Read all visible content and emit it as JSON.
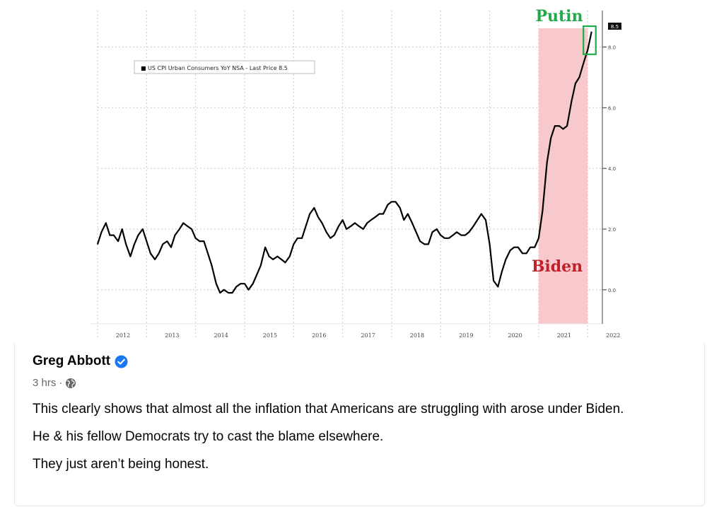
{
  "chart_data": {
    "type": "line",
    "title": "",
    "legend": "US CPI Urban Consumers YoY NSA - Last Price 8.5",
    "legend_symbol": "■",
    "xlabel": "",
    "ylabel": "",
    "x_ticks": [
      "2012",
      "2013",
      "2014",
      "2015",
      "2016",
      "2017",
      "2018",
      "2019",
      "2020",
      "2021",
      "2022"
    ],
    "y_ticks": [
      "0.0",
      "2.0",
      "4.0",
      "6.0",
      "8.0"
    ],
    "ylim": [
      -1.1,
      9.2
    ],
    "xlim": [
      2012.0,
      2022.3
    ],
    "last_price_label": "8.5",
    "series": [
      {
        "name": "US CPI Urban Consumers YoY NSA",
        "color": "#000000",
        "points": [
          [
            2012.0,
            1.5
          ],
          [
            2012.08,
            1.9
          ],
          [
            2012.17,
            2.2
          ],
          [
            2012.25,
            1.8
          ],
          [
            2012.33,
            1.8
          ],
          [
            2012.42,
            1.6
          ],
          [
            2012.5,
            2.0
          ],
          [
            2012.58,
            1.5
          ],
          [
            2012.67,
            1.1
          ],
          [
            2012.75,
            1.5
          ],
          [
            2012.83,
            1.8
          ],
          [
            2012.92,
            2.0
          ],
          [
            2013.0,
            1.6
          ],
          [
            2013.08,
            1.2
          ],
          [
            2013.17,
            1.0
          ],
          [
            2013.25,
            1.2
          ],
          [
            2013.33,
            1.5
          ],
          [
            2013.42,
            1.6
          ],
          [
            2013.5,
            1.4
          ],
          [
            2013.58,
            1.8
          ],
          [
            2013.67,
            2.0
          ],
          [
            2013.75,
            2.2
          ],
          [
            2013.83,
            2.1
          ],
          [
            2013.92,
            2.0
          ],
          [
            2014.0,
            1.7
          ],
          [
            2014.08,
            1.6
          ],
          [
            2014.17,
            1.6
          ],
          [
            2014.25,
            1.2
          ],
          [
            2014.33,
            0.8
          ],
          [
            2014.42,
            0.2
          ],
          [
            2014.5,
            -0.1
          ],
          [
            2014.58,
            0.0
          ],
          [
            2014.67,
            -0.1
          ],
          [
            2014.75,
            -0.1
          ],
          [
            2014.83,
            0.1
          ],
          [
            2014.92,
            0.2
          ],
          [
            2015.0,
            0.2
          ],
          [
            2015.08,
            0.0
          ],
          [
            2015.17,
            0.2
          ],
          [
            2015.25,
            0.5
          ],
          [
            2015.33,
            0.8
          ],
          [
            2015.42,
            1.4
          ],
          [
            2015.5,
            1.1
          ],
          [
            2015.58,
            1.0
          ],
          [
            2015.67,
            1.1
          ],
          [
            2015.75,
            1.0
          ],
          [
            2015.83,
            0.9
          ],
          [
            2015.92,
            1.1
          ],
          [
            2016.0,
            1.5
          ],
          [
            2016.08,
            1.7
          ],
          [
            2016.17,
            1.7
          ],
          [
            2016.25,
            2.1
          ],
          [
            2016.33,
            2.5
          ],
          [
            2016.42,
            2.7
          ],
          [
            2016.5,
            2.4
          ],
          [
            2016.58,
            2.2
          ],
          [
            2016.67,
            1.9
          ],
          [
            2016.75,
            1.7
          ],
          [
            2016.83,
            1.8
          ],
          [
            2016.92,
            2.1
          ],
          [
            2017.0,
            2.3
          ],
          [
            2017.08,
            2.0
          ],
          [
            2017.17,
            2.1
          ],
          [
            2017.25,
            2.2
          ],
          [
            2017.33,
            2.1
          ],
          [
            2017.42,
            2.0
          ],
          [
            2017.5,
            2.2
          ],
          [
            2017.58,
            2.3
          ],
          [
            2017.67,
            2.4
          ],
          [
            2017.75,
            2.5
          ],
          [
            2017.83,
            2.5
          ],
          [
            2017.92,
            2.8
          ],
          [
            2018.0,
            2.9
          ],
          [
            2018.08,
            2.9
          ],
          [
            2018.17,
            2.7
          ],
          [
            2018.25,
            2.3
          ],
          [
            2018.33,
            2.5
          ],
          [
            2018.42,
            2.2
          ],
          [
            2018.5,
            1.9
          ],
          [
            2018.58,
            1.6
          ],
          [
            2018.67,
            1.5
          ],
          [
            2018.75,
            1.5
          ],
          [
            2018.83,
            1.9
          ],
          [
            2018.92,
            2.0
          ],
          [
            2019.0,
            1.8
          ],
          [
            2019.08,
            1.7
          ],
          [
            2019.17,
            1.7
          ],
          [
            2019.25,
            1.8
          ],
          [
            2019.33,
            1.9
          ],
          [
            2019.42,
            1.8
          ],
          [
            2019.5,
            1.8
          ],
          [
            2019.58,
            1.9
          ],
          [
            2019.67,
            2.1
          ],
          [
            2019.75,
            2.3
          ],
          [
            2019.83,
            2.5
          ],
          [
            2019.92,
            2.3
          ],
          [
            2020.0,
            1.5
          ],
          [
            2020.08,
            0.3
          ],
          [
            2020.17,
            0.1
          ],
          [
            2020.25,
            0.6
          ],
          [
            2020.33,
            1.0
          ],
          [
            2020.42,
            1.3
          ],
          [
            2020.5,
            1.4
          ],
          [
            2020.58,
            1.4
          ],
          [
            2020.67,
            1.2
          ],
          [
            2020.75,
            1.2
          ],
          [
            2020.83,
            1.4
          ],
          [
            2020.92,
            1.4
          ],
          [
            2021.0,
            1.7
          ],
          [
            2021.08,
            2.6
          ],
          [
            2021.17,
            4.2
          ],
          [
            2021.25,
            5.0
          ],
          [
            2021.33,
            5.4
          ],
          [
            2021.42,
            5.4
          ],
          [
            2021.5,
            5.3
          ],
          [
            2021.58,
            5.4
          ],
          [
            2021.67,
            6.2
          ],
          [
            2021.75,
            6.8
          ],
          [
            2021.83,
            7.0
          ],
          [
            2021.92,
            7.5
          ],
          [
            2022.0,
            7.9
          ],
          [
            2022.08,
            8.5
          ]
        ]
      }
    ],
    "annotations": {
      "putin_label": "Putin",
      "putin_color": "#22a94b",
      "biden_label": "Biden",
      "biden_color": "#c0202a",
      "biden_shade_color": "#f7c8cc",
      "biden_shade_from": 2021.0,
      "biden_shade_to": 2022.0
    }
  },
  "post": {
    "author": "Greg Abbott",
    "time": "3 hrs",
    "separator": "·",
    "paragraphs": [
      "This clearly shows that almost all the inflation that Americans are struggling with arose under Biden.",
      "He & his fellow Democrats try to cast the blame elsewhere.",
      "They just aren’t being honest."
    ],
    "verified_color": "#1877f2"
  }
}
